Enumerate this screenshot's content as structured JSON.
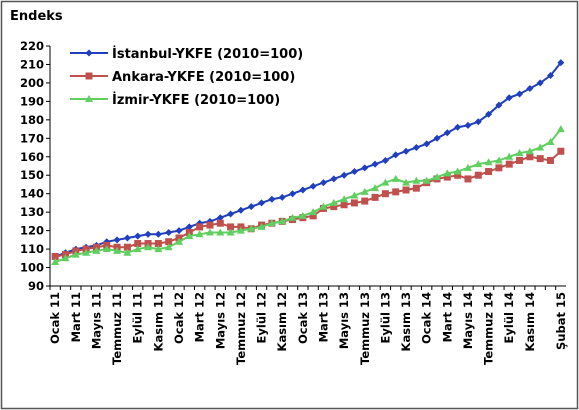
{
  "chart_data": {
    "type": "line",
    "title": "Endeks",
    "categories": [
      "Ocak 11",
      null,
      "Mart 11",
      null,
      "Mayıs 11",
      null,
      "Temmuz 11",
      null,
      "Eylül 11",
      null,
      "Kasım 11",
      null,
      "Ocak 12",
      null,
      "Mart 12",
      null,
      "Mayıs 12",
      null,
      "Temmuz 12",
      null,
      "Eylül 12",
      null,
      "Kasım 12",
      null,
      "Ocak 13",
      null,
      "Mart 13",
      null,
      "Mayıs 13",
      null,
      "Temmuz 13",
      null,
      "Eylül 13",
      null,
      "Kasım 13",
      null,
      "Ocak 14",
      null,
      "Mart 14",
      null,
      "Mayıs 14",
      null,
      "Temmuz 14",
      null,
      "Eylül 14",
      null,
      "Kasım 14",
      null,
      null,
      "Şubat 15"
    ],
    "series": [
      {
        "name": "İstanbul-YKFE (2010=100)",
        "color": "#1f3fbf",
        "marker": "diamond",
        "values": [
          106,
          108,
          110,
          111,
          112,
          114,
          115,
          116,
          117,
          118,
          118,
          119,
          120,
          122,
          124,
          125,
          127,
          129,
          131,
          133,
          135,
          137,
          138,
          140,
          142,
          144,
          146,
          148,
          150,
          152,
          154,
          156,
          158,
          161,
          163,
          165,
          167,
          170,
          173,
          176,
          177,
          179,
          183,
          188,
          192,
          194,
          197,
          200,
          204,
          211
        ]
      },
      {
        "name": "Ankara-YKFE (2010=100)",
        "color": "#c0504d",
        "marker": "square",
        "values": [
          106,
          107,
          109,
          110,
          111,
          112,
          111,
          111,
          113,
          113,
          113,
          114,
          116,
          119,
          122,
          123,
          124,
          122,
          122,
          121,
          123,
          124,
          125,
          126,
          127,
          128,
          132,
          133,
          134,
          135,
          136,
          138,
          140,
          141,
          142,
          143,
          146,
          148,
          149,
          150,
          148,
          150,
          152,
          154,
          156,
          158,
          160,
          159,
          158,
          163
        ]
      },
      {
        "name": "İzmir-YKFE (2010=100)",
        "color": "#5fcf5f",
        "marker": "triangle",
        "values": [
          103,
          105,
          107,
          108,
          109,
          110,
          109,
          108,
          110,
          111,
          110,
          111,
          114,
          117,
          118,
          119,
          119,
          119,
          120,
          121,
          122,
          124,
          125,
          127,
          128,
          130,
          133,
          135,
          137,
          139,
          141,
          143,
          146,
          148,
          146,
          147,
          147,
          149,
          151,
          152,
          154,
          156,
          157,
          158,
          160,
          162,
          163,
          165,
          168,
          175
        ]
      }
    ],
    "ylim": [
      90,
      220
    ],
    "yticks": [
      90,
      100,
      110,
      120,
      130,
      140,
      150,
      160,
      170,
      180,
      190,
      200,
      210,
      220
    ],
    "grid": false,
    "legend": "top-left"
  }
}
